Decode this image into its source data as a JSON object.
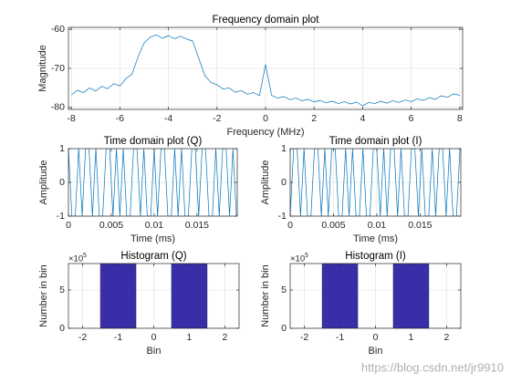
{
  "chart_data": [
    {
      "type": "line",
      "title": "Frequency domain plot",
      "xlabel": "Frequency (MHz)",
      "ylabel": "Magnitude",
      "color": "#0072bd",
      "grid": true,
      "xlim": [
        -8.12,
        8.12
      ],
      "ylim": [
        -80.5,
        -59.5
      ],
      "xticks": [
        -8,
        -6,
        -4,
        -2,
        0,
        2,
        4,
        6,
        8
      ],
      "yticks": [
        -80,
        -70,
        -60
      ],
      "x": [
        -8,
        -7.75,
        -7.5,
        -7.25,
        -7,
        -6.75,
        -6.5,
        -6.25,
        -6,
        -5.75,
        -5.5,
        -5.25,
        -5,
        -4.75,
        -4.5,
        -4.25,
        -4,
        -3.75,
        -3.5,
        -3.25,
        -3,
        -2.75,
        -2.5,
        -2.25,
        -2,
        -1.75,
        -1.5,
        -1.25,
        -1,
        -0.75,
        -0.5,
        -0.25,
        0,
        0.25,
        0.5,
        0.75,
        1,
        1.25,
        1.5,
        1.75,
        2,
        2.25,
        2.5,
        2.75,
        3,
        3.25,
        3.5,
        3.75,
        4,
        4.25,
        4.5,
        4.75,
        5,
        5.25,
        5.5,
        5.75,
        6,
        6.25,
        6.5,
        6.75,
        7,
        7.25,
        7.5,
        7.75,
        8
      ],
      "values": [
        -76.8,
        -75.6,
        -76.2,
        -75.0,
        -75.8,
        -74.6,
        -75.2,
        -73.9,
        -74.5,
        -72.6,
        -71.5,
        -67.0,
        -63.5,
        -62.0,
        -61.4,
        -62.3,
        -61.6,
        -62.4,
        -61.8,
        -62.5,
        -63.0,
        -67.5,
        -71.8,
        -73.6,
        -74.2,
        -75.3,
        -75.0,
        -76.1,
        -75.7,
        -76.6,
        -76.2,
        -77.0,
        -69.0,
        -76.9,
        -77.6,
        -77.2,
        -78.0,
        -77.6,
        -78.3,
        -77.9,
        -78.6,
        -78.2,
        -78.8,
        -78.4,
        -79.0,
        -78.5,
        -79.1,
        -78.6,
        -79.6,
        -78.7,
        -79.0,
        -78.4,
        -78.9,
        -78.3,
        -78.7,
        -78.1,
        -78.5,
        -77.8,
        -78.2,
        -77.5,
        -77.9,
        -77.0,
        -77.4,
        -76.5,
        -76.9
      ]
    },
    {
      "type": "line",
      "title": "Time domain plot (Q)",
      "xlabel": "Time (ms)",
      "ylabel": "Amplitude",
      "color": "#0072bd",
      "grid": true,
      "xlim": [
        0,
        0.0197
      ],
      "ylim": [
        -1,
        1
      ],
      "xticks": [
        0,
        0.005,
        0.01,
        0.015
      ],
      "yticks": [
        -1,
        0,
        1
      ],
      "x": [
        0,
        0.0004,
        0.0008,
        0.0012,
        0.0016,
        0.002,
        0.0024,
        0.0028,
        0.0032,
        0.0036,
        0.004,
        0.0044,
        0.0048,
        0.0052,
        0.0056,
        0.006,
        0.0064,
        0.0068,
        0.0072,
        0.0076,
        0.008,
        0.0084,
        0.0088,
        0.0092,
        0.0096,
        0.01,
        0.0104,
        0.0108,
        0.0112,
        0.0116,
        0.012,
        0.0124,
        0.0128,
        0.0132,
        0.0136,
        0.014,
        0.0144,
        0.0148,
        0.0152,
        0.0156,
        0.016,
        0.0164,
        0.0168,
        0.0172,
        0.0176,
        0.018,
        0.0184,
        0.0188,
        0.0192,
        0.0196
      ],
      "values": [
        1,
        -1,
        -1,
        1,
        -1,
        1,
        1,
        -1,
        1,
        -1,
        -1,
        1,
        1,
        -1,
        1,
        -1,
        1,
        -1,
        -1,
        1,
        1,
        -1,
        1,
        -1,
        -1,
        1,
        -1,
        1,
        1,
        -1,
        -1,
        1,
        -1,
        1,
        -1,
        -1,
        1,
        1,
        -1,
        1,
        1,
        -1,
        -1,
        1,
        -1,
        1,
        1,
        -1,
        1,
        -1
      ]
    },
    {
      "type": "line",
      "title": "Time domain plot (I)",
      "xlabel": "Time (ms)",
      "ylabel": "Amplitude",
      "color": "#0072bd",
      "grid": true,
      "xlim": [
        0,
        0.0197
      ],
      "ylim": [
        -1,
        1
      ],
      "xticks": [
        0,
        0.005,
        0.01,
        0.015
      ],
      "yticks": [
        -1,
        0,
        1
      ],
      "x": [
        0,
        0.0004,
        0.0008,
        0.0012,
        0.0016,
        0.002,
        0.0024,
        0.0028,
        0.0032,
        0.0036,
        0.004,
        0.0044,
        0.0048,
        0.0052,
        0.0056,
        0.006,
        0.0064,
        0.0068,
        0.0072,
        0.0076,
        0.008,
        0.0084,
        0.0088,
        0.0092,
        0.0096,
        0.01,
        0.0104,
        0.0108,
        0.0112,
        0.0116,
        0.012,
        0.0124,
        0.0128,
        0.0132,
        0.0136,
        0.014,
        0.0144,
        0.0148,
        0.0152,
        0.0156,
        0.016,
        0.0164,
        0.0168,
        0.0172,
        0.0176,
        0.018,
        0.0184,
        0.0188,
        0.0192,
        0.0196
      ],
      "values": [
        -1,
        1,
        1,
        -1,
        1,
        -1,
        -1,
        1,
        1,
        -1,
        1,
        -1,
        1,
        1,
        -1,
        -1,
        1,
        -1,
        1,
        -1,
        -1,
        1,
        -1,
        -1,
        1,
        1,
        -1,
        1,
        -1,
        1,
        1,
        -1,
        1,
        -1,
        -1,
        1,
        1,
        -1,
        1,
        -1,
        -1,
        1,
        -1,
        1,
        1,
        -1,
        1,
        -1,
        -1,
        1
      ]
    },
    {
      "type": "histogram",
      "title": "Histogram (Q)",
      "xlabel": "Bin",
      "ylabel": "Number in bin",
      "color": "#3a2ea8",
      "grid": true,
      "y_multiplier": "×10",
      "y_multiplier_exponent": "5",
      "xlim": [
        -2.4,
        2.4
      ],
      "ylim": [
        0,
        845000
      ],
      "xticks": [
        -2,
        -1,
        0,
        1,
        2
      ],
      "yticks": [
        0,
        {
          "value": 500000,
          "label": "5"
        }
      ],
      "bins": [
        -2.5,
        -1.5,
        -0.5,
        0.5,
        1.5,
        2.5
      ],
      "values": [
        0,
        840000,
        0,
        840000,
        0
      ]
    },
    {
      "type": "histogram",
      "title": "Histogram (I)",
      "xlabel": "Bin",
      "ylabel": "Number in bin",
      "color": "#3a2ea8",
      "grid": true,
      "y_multiplier": "×10",
      "y_multiplier_exponent": "5",
      "xlim": [
        -2.4,
        2.4
      ],
      "ylim": [
        0,
        845000
      ],
      "xticks": [
        -2,
        -1,
        0,
        1,
        2
      ],
      "yticks": [
        0,
        {
          "value": 500000,
          "label": "5"
        }
      ],
      "bins": [
        -2.5,
        -1.5,
        -0.5,
        0.5,
        1.5,
        2.5
      ],
      "values": [
        0,
        840000,
        0,
        840000,
        0
      ]
    }
  ],
  "watermark": "https://blog.csdn.net/jr9910"
}
